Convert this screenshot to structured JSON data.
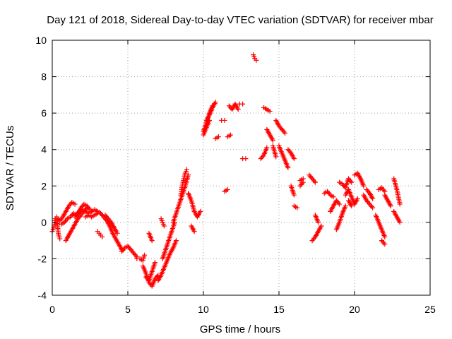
{
  "chart_data": {
    "type": "scatter",
    "title": "Day 121 of 2018, Sidereal Day-to-day VTEC variation (SDTVAR) for receiver mbar",
    "xlabel": "GPS time / hours",
    "ylabel": "SDTVAR / TECUs",
    "xlim": [
      0,
      25
    ],
    "ylim": [
      -4,
      10
    ],
    "xticks": [
      "0",
      "5",
      "10",
      "15",
      "20",
      "25"
    ],
    "yticks": [
      "-4",
      "-2",
      "0",
      "2",
      "4",
      "6",
      "8",
      "10"
    ],
    "grid": true,
    "marker": "+",
    "marker_color": "#ff0000",
    "series": [
      {
        "name": "SDTVAR",
        "segments": [
          {
            "x": [
              0.0,
              0.1,
              0.2,
              0.3,
              0.4,
              0.5
            ],
            "y": [
              -0.5,
              -0.3,
              0.2,
              0.3,
              -0.6,
              -0.9
            ]
          },
          {
            "x": [
              0.3,
              0.5,
              0.7,
              0.9,
              1.1,
              1.3,
              1.5
            ],
            "y": [
              0.2,
              0.1,
              0.3,
              0.6,
              0.9,
              1.1,
              1.0
            ]
          },
          {
            "x": [
              0.6,
              0.8,
              1.0,
              1.2,
              1.4,
              1.6,
              1.8,
              2.0,
              2.2,
              2.4,
              2.6,
              2.8,
              3.0,
              3.2
            ],
            "y": [
              -0.1,
              0.0,
              0.2,
              0.3,
              0.5,
              0.4,
              0.6,
              0.7,
              0.6,
              0.5,
              0.6,
              0.7,
              0.6,
              0.5
            ]
          },
          {
            "x": [
              0.9,
              1.1,
              1.3,
              1.5,
              1.7,
              1.9,
              2.1,
              2.3
            ],
            "y": [
              -1.0,
              -0.7,
              -0.4,
              -0.1,
              0.2,
              0.4,
              0.6,
              0.8
            ]
          },
          {
            "x": [
              1.5,
              1.7,
              1.9,
              2.1,
              2.3,
              2.5
            ],
            "y": [
              0.3,
              0.5,
              0.8,
              1.0,
              0.9,
              0.7
            ]
          },
          {
            "x": [
              2.2,
              2.4,
              2.6,
              2.8,
              3.0
            ],
            "y": [
              0.3,
              0.4,
              0.3,
              0.4,
              0.5
            ]
          },
          {
            "x": [
              3.0,
              3.1,
              3.2,
              3.3
            ],
            "y": [
              -0.5,
              -0.6,
              -0.7,
              -0.8
            ]
          },
          {
            "x": [
              3.2,
              3.4,
              3.6,
              3.8,
              4.0,
              4.2,
              4.4,
              4.6
            ],
            "y": [
              0.5,
              0.3,
              0.1,
              -0.2,
              -0.6,
              -0.9,
              -1.2,
              -1.5
            ]
          },
          {
            "x": [
              3.5,
              3.7,
              3.9,
              4.1,
              4.3
            ],
            "y": [
              0.4,
              0.2,
              0.0,
              -0.3,
              -0.6
            ]
          },
          {
            "x": [
              4.6,
              4.8,
              5.0,
              5.2,
              5.4,
              5.6
            ],
            "y": [
              -1.6,
              -1.4,
              -1.3,
              -1.5,
              -1.7,
              -1.9
            ]
          },
          {
            "x": [
              5.6,
              5.8,
              6.0,
              6.1
            ],
            "y": [
              -2.0,
              -2.0,
              -2.1,
              -1.8
            ]
          },
          {
            "x": [
              6.0,
              6.2,
              6.4,
              6.6,
              6.8,
              7.0
            ],
            "y": [
              -2.4,
              -2.8,
              -3.3,
              -3.5,
              -3.1,
              -2.9
            ]
          },
          {
            "x": [
              6.2,
              6.4,
              6.6,
              6.8
            ],
            "y": [
              -3.0,
              -3.2,
              -2.7,
              -2.2
            ]
          },
          {
            "x": [
              6.4,
              6.6
            ],
            "y": [
              -0.6,
              -1.0
            ]
          },
          {
            "x": [
              7.0,
              7.2,
              7.4,
              7.6,
              7.8,
              8.0,
              8.2
            ],
            "y": [
              -3.2,
              -2.9,
              -2.5,
              -2.1,
              -1.7,
              -1.4,
              -1.0
            ]
          },
          {
            "x": [
              7.3,
              7.5,
              7.7,
              7.9,
              8.1
            ],
            "y": [
              -2.0,
              -1.5,
              -1.0,
              -0.5,
              0.0
            ]
          },
          {
            "x": [
              7.2,
              7.3,
              7.4
            ],
            "y": [
              0.2,
              0.0,
              -0.2
            ]
          },
          {
            "x": [
              8.0,
              8.2,
              8.4,
              8.6,
              8.8,
              9.0
            ],
            "y": [
              0.0,
              0.5,
              1.0,
              1.5,
              2.0,
              2.6
            ]
          },
          {
            "x": [
              8.5,
              8.6,
              8.7,
              8.8,
              8.9
            ],
            "y": [
              1.5,
              2.0,
              2.4,
              2.7,
              2.9
            ]
          },
          {
            "x": [
              9.0,
              9.2,
              9.4,
              9.6,
              9.8
            ],
            "y": [
              1.6,
              1.2,
              0.6,
              0.3,
              0.6
            ]
          },
          {
            "x": [
              9.2,
              9.4
            ],
            "y": [
              -0.2,
              -0.5
            ]
          },
          {
            "x": [
              10.0,
              10.2,
              10.4,
              10.6
            ],
            "y": [
              5.0,
              5.5,
              6.0,
              6.4
            ]
          },
          {
            "x": [
              10.2,
              10.4,
              10.6,
              10.8
            ],
            "y": [
              5.6,
              5.9,
              6.3,
              6.6
            ]
          },
          {
            "x": [
              10.0,
              10.2,
              10.4
            ],
            "y": [
              4.8,
              5.2,
              5.6
            ]
          },
          {
            "x": [
              10.8,
              11.0
            ],
            "y": [
              4.6,
              4.7
            ]
          },
          {
            "x": [
              11.4,
              11.6
            ],
            "y": [
              1.7,
              1.8
            ]
          },
          {
            "x": [
              11.2,
              11.4
            ],
            "y": [
              5.6,
              5.6
            ]
          },
          {
            "x": [
              11.6,
              11.8
            ],
            "y": [
              4.7,
              4.8
            ]
          },
          {
            "x": [
              11.7,
              11.9,
              12.1,
              12.3
            ],
            "y": [
              6.4,
              6.2,
              6.5,
              6.2
            ]
          },
          {
            "x": [
              12.4,
              12.6
            ],
            "y": [
              6.5,
              6.5
            ]
          },
          {
            "x": [
              12.6,
              12.8
            ],
            "y": [
              3.5,
              3.5
            ]
          },
          {
            "x": [
              13.3,
              13.4,
              13.5
            ],
            "y": [
              9.2,
              9.0,
              8.9
            ]
          },
          {
            "x": [
              13.8,
              14.0,
              14.2
            ],
            "y": [
              3.5,
              3.7,
              4.1
            ]
          },
          {
            "x": [
              14.0,
              14.2,
              14.4
            ],
            "y": [
              6.3,
              6.2,
              6.1
            ]
          },
          {
            "x": [
              14.2,
              14.4,
              14.6
            ],
            "y": [
              5.1,
              4.8,
              4.5
            ]
          },
          {
            "x": [
              14.6,
              14.8
            ],
            "y": [
              4.2,
              3.6
            ]
          },
          {
            "x": [
              14.8,
              15.0,
              15.2,
              15.4
            ],
            "y": [
              5.6,
              5.3,
              5.1,
              4.9
            ]
          },
          {
            "x": [
              15.0,
              15.2,
              15.4,
              15.6
            ],
            "y": [
              4.2,
              3.8,
              3.4,
              3.0
            ]
          },
          {
            "x": [
              15.6,
              15.8,
              16.0
            ],
            "y": [
              4.0,
              3.8,
              3.5
            ]
          },
          {
            "x": [
              15.8,
              16.0
            ],
            "y": [
              2.0,
              1.5
            ]
          },
          {
            "x": [
              16.0,
              16.2
            ],
            "y": [
              0.9,
              0.8
            ]
          },
          {
            "x": [
              16.4,
              16.6
            ],
            "y": [
              2.3,
              2.4
            ]
          },
          {
            "x": [
              16.4,
              16.6
            ],
            "y": [
              2.0,
              2.2
            ]
          },
          {
            "x": [
              17.0,
              17.2,
              17.4
            ],
            "y": [
              2.6,
              2.4,
              2.2
            ]
          },
          {
            "x": [
              17.2,
              17.4,
              17.6,
              17.8
            ],
            "y": [
              -1.0,
              -0.8,
              -0.5,
              -0.2
            ]
          },
          {
            "x": [
              17.4,
              17.6
            ],
            "y": [
              0.4,
              0.0
            ]
          },
          {
            "x": [
              18.0,
              18.2,
              18.4,
              18.6
            ],
            "y": [
              1.6,
              1.7,
              1.5,
              1.4
            ]
          },
          {
            "x": [
              18.4,
              18.6,
              18.8,
              19.0
            ],
            "y": [
              0.6,
              0.9,
              1.2,
              1.0
            ]
          },
          {
            "x": [
              18.8,
              19.0,
              19.2,
              19.4
            ],
            "y": [
              -0.4,
              0.0,
              0.5,
              0.9
            ]
          },
          {
            "x": [
              19.0,
              19.2,
              19.4,
              19.6,
              19.8
            ],
            "y": [
              2.2,
              2.1,
              1.9,
              2.4,
              2.2
            ]
          },
          {
            "x": [
              19.4,
              19.6,
              19.8,
              20.0,
              20.2
            ],
            "y": [
              1.5,
              1.8,
              1.4,
              1.0,
              1.3
            ]
          },
          {
            "x": [
              19.6,
              19.8
            ],
            "y": [
              1.2,
              0.9
            ]
          },
          {
            "x": [
              20.0,
              20.2,
              20.4,
              20.6
            ],
            "y": [
              2.6,
              2.7,
              2.4,
              2.0
            ]
          },
          {
            "x": [
              20.6,
              20.8,
              21.0,
              21.2
            ],
            "y": [
              1.5,
              1.2,
              1.0,
              0.8
            ]
          },
          {
            "x": [
              20.8,
              21.0,
              21.2
            ],
            "y": [
              1.8,
              1.6,
              1.3
            ]
          },
          {
            "x": [
              21.6,
              21.8,
              22.0
            ],
            "y": [
              1.8,
              1.9,
              1.7
            ]
          },
          {
            "x": [
              21.4,
              21.6,
              21.8,
              22.0
            ],
            "y": [
              0.4,
              0.0,
              -0.4,
              -0.8
            ]
          },
          {
            "x": [
              21.8,
              22.0
            ],
            "y": [
              -1.0,
              -1.2
            ]
          },
          {
            "x": [
              22.0,
              22.2,
              22.4
            ],
            "y": [
              1.5,
              1.2,
              0.9
            ]
          },
          {
            "x": [
              22.6,
              22.8,
              23.0
            ],
            "y": [
              2.4,
              1.8,
              1.0
            ]
          },
          {
            "x": [
              22.6,
              22.8,
              23.0
            ],
            "y": [
              0.6,
              0.3,
              0.0
            ]
          }
        ]
      }
    ]
  }
}
